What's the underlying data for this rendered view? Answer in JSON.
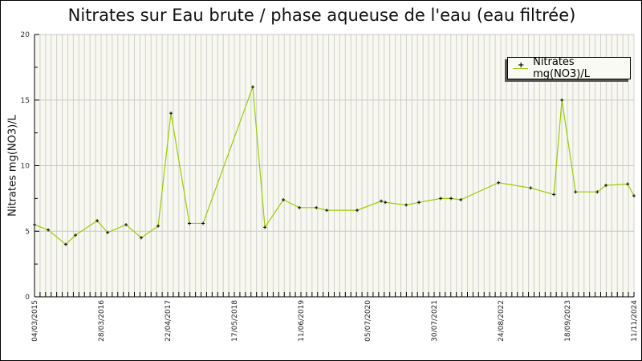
{
  "chart_data": {
    "type": "line",
    "title": "Nitrates sur Eau brute / phase aqueuse de l'eau (eau filtrée)",
    "xlabel": "",
    "ylabel": "Nitrates mg(NO3)/L",
    "ylim": [
      0,
      20
    ],
    "yticks": [
      "0",
      "5",
      "10",
      "15",
      "20"
    ],
    "x_unit": "days since 04/03/2015",
    "xlim": [
      0,
      3510
    ],
    "xtick_labels": [
      "04/03/2015",
      "28/03/2016",
      "22/04/2017",
      "17/05/2018",
      "11/06/2019",
      "05/07/2020",
      "30/07/2021",
      "24/08/2022",
      "18/09/2023",
      "11/11/2024"
    ],
    "grid": true,
    "legend_position": "top-right",
    "series": [
      {
        "name": "Nitrates mg(NO3)/L",
        "color": "#99cc00",
        "x": [
          0,
          80,
          183,
          240,
          367,
          428,
          536,
          625,
          724,
          799,
          907,
          987,
          1278,
          1349,
          1457,
          1551,
          1650,
          1711,
          1889,
          2030,
          2054,
          2176,
          2251,
          2378,
          2439,
          2496,
          2717,
          2905,
          3041,
          3088,
          3168,
          3295,
          3346,
          3473,
          3510
        ],
        "values": [
          5.5,
          5.1,
          4.0,
          4.7,
          5.8,
          4.9,
          5.5,
          4.5,
          5.4,
          14.0,
          5.6,
          5.6,
          16.0,
          5.3,
          7.4,
          6.8,
          6.8,
          6.6,
          6.6,
          7.3,
          7.2,
          7.0,
          7.2,
          7.5,
          7.5,
          7.4,
          8.7,
          8.3,
          7.8,
          15.0,
          8.0,
          8.0,
          8.5,
          8.6,
          7.7
        ]
      }
    ]
  }
}
